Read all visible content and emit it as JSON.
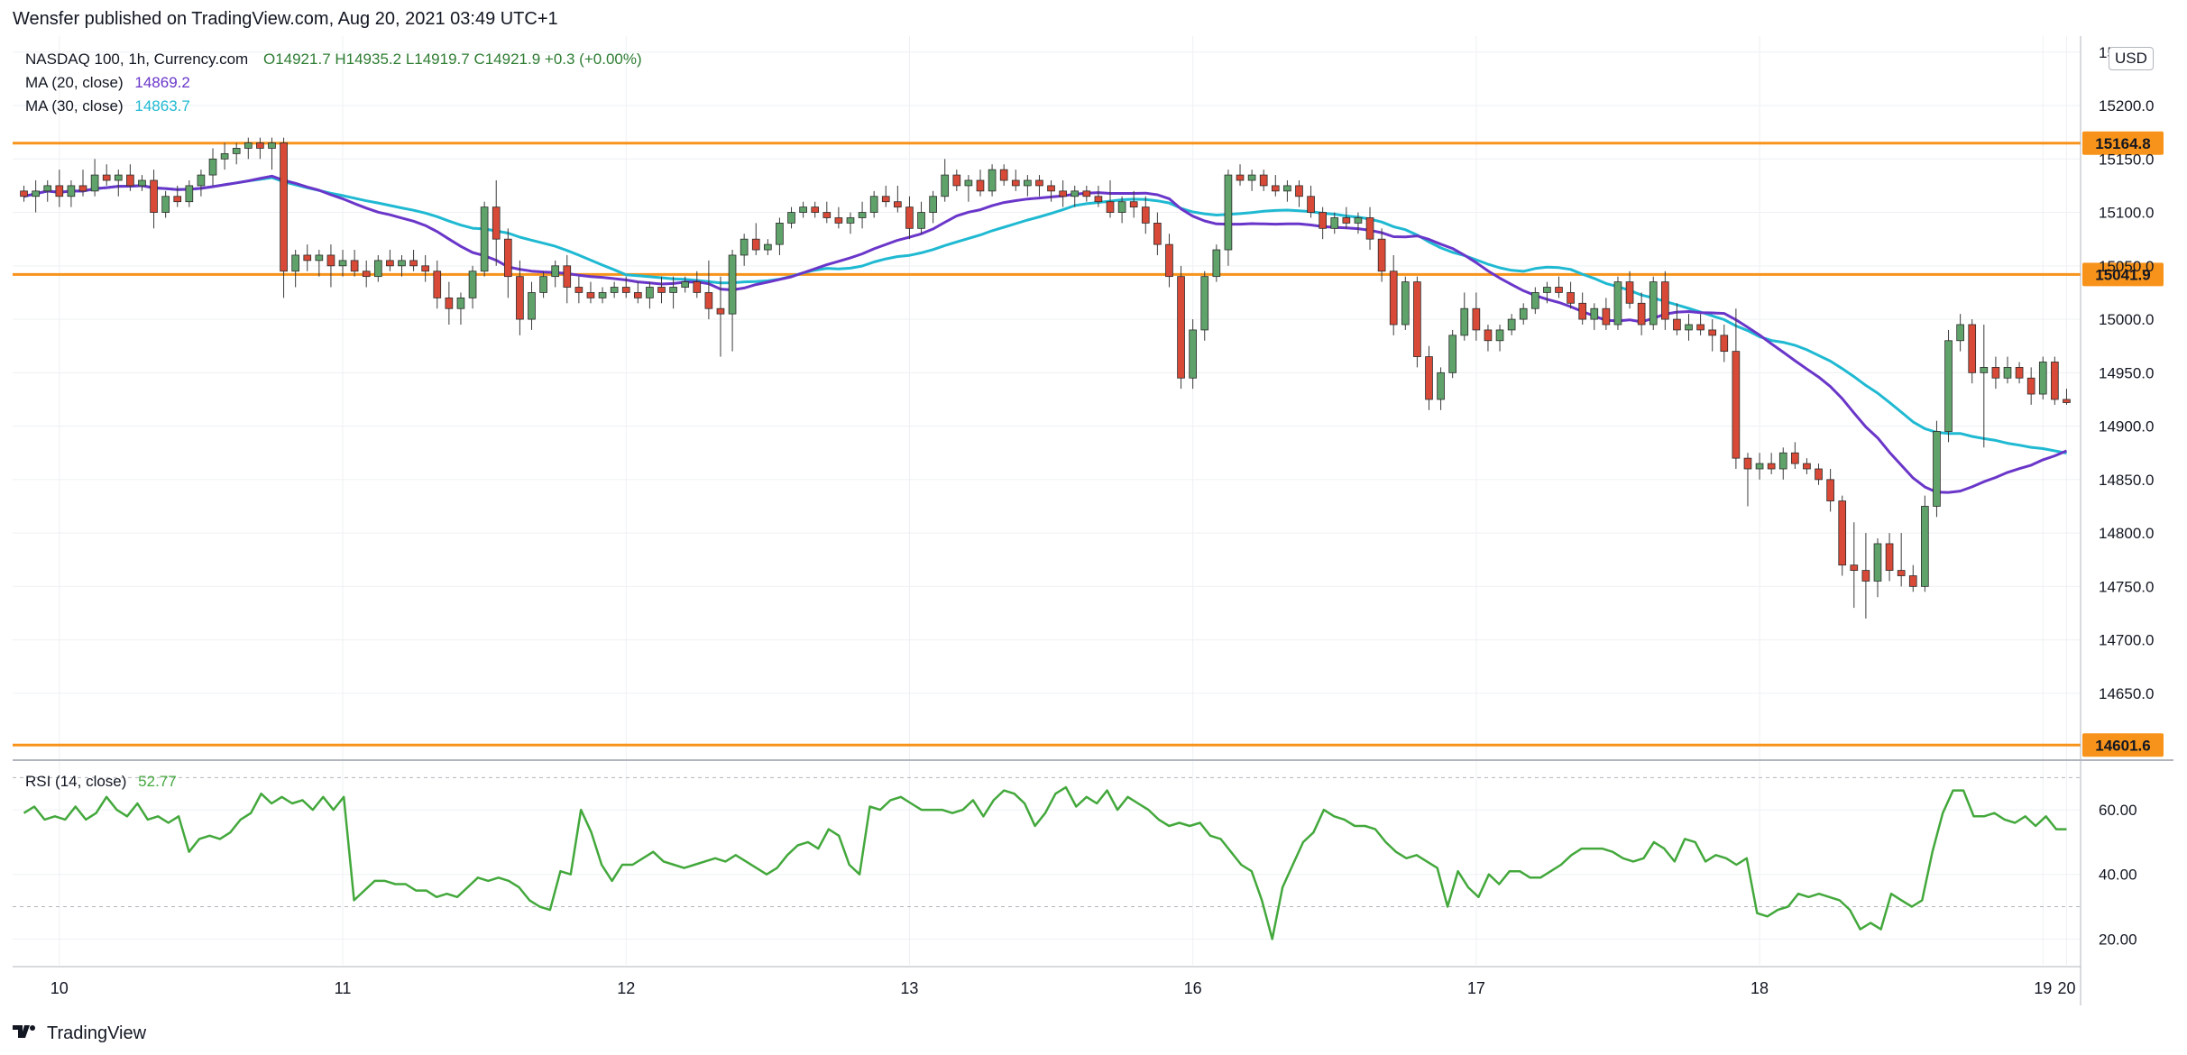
{
  "caption": "Wensfer published on TradingView.com, Aug 20, 2021 03:49 UTC+1",
  "footer": {
    "brand": "TradingView",
    "logo": "tradingview-logo-icon"
  },
  "currency_button": "USD",
  "legend": {
    "symbol": "NASDAQ 100, 1h, Currency.com",
    "ohlc": "O14921.7  H14935.2  L14919.7  C14921.9  +0.3 (+0.00%)",
    "ma20_label": "MA (20, close)",
    "ma20_value": "14869.2",
    "ma30_label": "MA (30, close)",
    "ma30_value": "14863.7",
    "rsi_label": "RSI (14, close)",
    "rsi_value": "52.77"
  },
  "colors": {
    "up": "#5fa36b",
    "down": "#d84a37",
    "ma20": "#6a36c9",
    "ma30": "#1fb9d2",
    "levels": "#f7931a",
    "rsi": "#43a83c",
    "grid": "#eef0f3"
  },
  "chart_data": [
    {
      "type": "candlestick",
      "title": "NASDAQ 100, 1h, Currency.com",
      "x_tick_labels": [
        "10",
        "11",
        "12",
        "13",
        "16",
        "17",
        "18",
        "19",
        "20"
      ],
      "y_tick_labels": [
        "14650.0",
        "14700.0",
        "14750.0",
        "14800.0",
        "14850.0",
        "14900.0",
        "14950.0",
        "15000.0",
        "15050.0",
        "15100.0",
        "15150.0",
        "15200.0",
        "15250.0"
      ],
      "ylim": [
        14590,
        15265
      ],
      "horizontal_levels": [
        15164.8,
        15041.9,
        14601.6
      ],
      "candles": [
        [
          15120,
          15125,
          15110,
          15115
        ],
        [
          15115,
          15130,
          15100,
          15120
        ],
        [
          15120,
          15130,
          15110,
          15125
        ],
        [
          15125,
          15140,
          15105,
          15115
        ],
        [
          15115,
          15130,
          15105,
          15125
        ],
        [
          15125,
          15140,
          15115,
          15120
        ],
        [
          15120,
          15150,
          15115,
          15135
        ],
        [
          15135,
          15145,
          15125,
          15130
        ],
        [
          15130,
          15140,
          15115,
          15135
        ],
        [
          15135,
          15145,
          15120,
          15125
        ],
        [
          15125,
          15135,
          15120,
          15130
        ],
        [
          15130,
          15140,
          15085,
          15100
        ],
        [
          15100,
          15120,
          15095,
          15115
        ],
        [
          15115,
          15125,
          15105,
          15110
        ],
        [
          15110,
          15130,
          15105,
          15125
        ],
        [
          15125,
          15140,
          15115,
          15135
        ],
        [
          15135,
          15160,
          15125,
          15150
        ],
        [
          15150,
          15165,
          15140,
          15155
        ],
        [
          15155,
          15165,
          15145,
          15160
        ],
        [
          15160,
          15170,
          15150,
          15165
        ],
        [
          15165,
          15170,
          15150,
          15160
        ],
        [
          15160,
          15170,
          15140,
          15165
        ],
        [
          15165,
          15170,
          15020,
          15045
        ],
        [
          15045,
          15065,
          15030,
          15060
        ],
        [
          15060,
          15070,
          15045,
          15055
        ],
        [
          15055,
          15065,
          15040,
          15060
        ],
        [
          15060,
          15070,
          15030,
          15050
        ],
        [
          15050,
          15065,
          15040,
          15055
        ],
        [
          15055,
          15065,
          15040,
          15045
        ],
        [
          15045,
          15055,
          15030,
          15040
        ],
        [
          15040,
          15060,
          15035,
          15055
        ],
        [
          15055,
          15065,
          15045,
          15050
        ],
        [
          15050,
          15060,
          15040,
          15055
        ],
        [
          15055,
          15065,
          15045,
          15050
        ],
        [
          15050,
          15060,
          15035,
          15045
        ],
        [
          15045,
          15055,
          15010,
          15020
        ],
        [
          15020,
          15035,
          14995,
          15010
        ],
        [
          15010,
          15025,
          14995,
          15020
        ],
        [
          15020,
          15050,
          15010,
          15045
        ],
        [
          15045,
          15110,
          15040,
          15105
        ],
        [
          15105,
          15130,
          15050,
          15075
        ],
        [
          15075,
          15085,
          15020,
          15040
        ],
        [
          15040,
          15055,
          14985,
          15000
        ],
        [
          15000,
          15035,
          14990,
          15025
        ],
        [
          15025,
          15045,
          15020,
          15040
        ],
        [
          15040,
          15055,
          15030,
          15050
        ],
        [
          15050,
          15060,
          15015,
          15030
        ],
        [
          15030,
          15040,
          15015,
          15025
        ],
        [
          15025,
          15035,
          15015,
          15020
        ],
        [
          15020,
          15030,
          15015,
          15025
        ],
        [
          15025,
          15035,
          15020,
          15030
        ],
        [
          15030,
          15040,
          15020,
          15025
        ],
        [
          15025,
          15035,
          15015,
          15020
        ],
        [
          15020,
          15035,
          15010,
          15030
        ],
        [
          15030,
          15040,
          15015,
          15025
        ],
        [
          15025,
          15040,
          15010,
          15030
        ],
        [
          15030,
          15040,
          15025,
          15035
        ],
        [
          15035,
          15045,
          15020,
          15025
        ],
        [
          15025,
          15055,
          15000,
          15010
        ],
        [
          15010,
          15040,
          14965,
          15005
        ],
        [
          15005,
          15065,
          14970,
          15060
        ],
        [
          15060,
          15080,
          15050,
          15075
        ],
        [
          15075,
          15090,
          15060,
          15065
        ],
        [
          15065,
          15075,
          15060,
          15070
        ],
        [
          15070,
          15095,
          15060,
          15090
        ],
        [
          15090,
          15105,
          15085,
          15100
        ],
        [
          15100,
          15110,
          15095,
          15105
        ],
        [
          15105,
          15110,
          15095,
          15100
        ],
        [
          15100,
          15110,
          15090,
          15095
        ],
        [
          15095,
          15105,
          15085,
          15090
        ],
        [
          15090,
          15100,
          15080,
          15095
        ],
        [
          15095,
          15110,
          15085,
          15100
        ],
        [
          15100,
          15120,
          15095,
          15115
        ],
        [
          15115,
          15125,
          15105,
          15110
        ],
        [
          15110,
          15125,
          15100,
          15105
        ],
        [
          15105,
          15115,
          15075,
          15085
        ],
        [
          15085,
          15110,
          15080,
          15100
        ],
        [
          15100,
          15120,
          15090,
          15115
        ],
        [
          15115,
          15150,
          15110,
          15135
        ],
        [
          15135,
          15140,
          15120,
          15125
        ],
        [
          15125,
          15135,
          15110,
          15130
        ],
        [
          15130,
          15140,
          15115,
          15120
        ],
        [
          15120,
          15145,
          15115,
          15140
        ],
        [
          15140,
          15145,
          15125,
          15130
        ],
        [
          15130,
          15140,
          15120,
          15125
        ],
        [
          15125,
          15135,
          15115,
          15130
        ],
        [
          15130,
          15135,
          15115,
          15125
        ],
        [
          15125,
          15130,
          15110,
          15120
        ],
        [
          15120,
          15130,
          15105,
          15115
        ],
        [
          15115,
          15125,
          15105,
          15120
        ],
        [
          15120,
          15125,
          15110,
          15115
        ],
        [
          15115,
          15125,
          15105,
          15110
        ],
        [
          15110,
          15130,
          15095,
          15100
        ],
        [
          15100,
          15115,
          15090,
          15110
        ],
        [
          15110,
          15120,
          15095,
          15105
        ],
        [
          15105,
          15115,
          15080,
          15090
        ],
        [
          15090,
          15100,
          15060,
          15070
        ],
        [
          15070,
          15080,
          15030,
          15040
        ],
        [
          15040,
          15050,
          14935,
          14945
        ],
        [
          14945,
          15000,
          14935,
          14990
        ],
        [
          14990,
          15045,
          14980,
          15040
        ],
        [
          15040,
          15070,
          15035,
          15065
        ],
        [
          15065,
          15140,
          15050,
          15135
        ],
        [
          15135,
          15145,
          15125,
          15130
        ],
        [
          15130,
          15140,
          15120,
          15135
        ],
        [
          15135,
          15140,
          15120,
          15125
        ],
        [
          15125,
          15135,
          15115,
          15120
        ],
        [
          15120,
          15130,
          15110,
          15125
        ],
        [
          15125,
          15130,
          15105,
          15115
        ],
        [
          15115,
          15125,
          15095,
          15100
        ],
        [
          15100,
          15105,
          15075,
          15085
        ],
        [
          15085,
          15100,
          15080,
          15095
        ],
        [
          15095,
          15105,
          15085,
          15090
        ],
        [
          15090,
          15100,
          15080,
          15095
        ],
        [
          15095,
          15105,
          15065,
          15075
        ],
        [
          15075,
          15085,
          15035,
          15045
        ],
        [
          15045,
          15060,
          14985,
          14995
        ],
        [
          14995,
          15040,
          14990,
          15035
        ],
        [
          15035,
          15040,
          14955,
          14965
        ],
        [
          14965,
          14975,
          14915,
          14925
        ],
        [
          14925,
          14955,
          14915,
          14950
        ],
        [
          14950,
          14990,
          14945,
          14985
        ],
        [
          14985,
          15025,
          14980,
          15010
        ],
        [
          15010,
          15025,
          14980,
          14990
        ],
        [
          14990,
          14995,
          14970,
          14980
        ],
        [
          14980,
          14995,
          14970,
          14990
        ],
        [
          14990,
          15005,
          14985,
          15000
        ],
        [
          15000,
          15015,
          14995,
          15010
        ],
        [
          15010,
          15030,
          15005,
          15025
        ],
        [
          15025,
          15035,
          15015,
          15030
        ],
        [
          15030,
          15040,
          15020,
          15025
        ],
        [
          15025,
          15035,
          15010,
          15015
        ],
        [
          15015,
          15025,
          14995,
          15000
        ],
        [
          15000,
          15015,
          14990,
          15010
        ],
        [
          15010,
          15020,
          14990,
          14995
        ],
        [
          14995,
          15040,
          14990,
          15035
        ],
        [
          15035,
          15045,
          15010,
          15015
        ],
        [
          15015,
          15025,
          14985,
          14995
        ],
        [
          14995,
          15040,
          14990,
          15035
        ],
        [
          15035,
          15045,
          14990,
          15000
        ],
        [
          15000,
          15015,
          14985,
          14990
        ],
        [
          14990,
          15005,
          14980,
          14995
        ],
        [
          14995,
          15005,
          14985,
          14990
        ],
        [
          14990,
          15000,
          14970,
          14985
        ],
        [
          14985,
          14995,
          14960,
          14970
        ],
        [
          14970,
          15010,
          14860,
          14870
        ],
        [
          14870,
          14875,
          14825,
          14860
        ],
        [
          14860,
          14875,
          14850,
          14865
        ],
        [
          14865,
          14875,
          14855,
          14860
        ],
        [
          14860,
          14880,
          14850,
          14875
        ],
        [
          14875,
          14885,
          14860,
          14865
        ],
        [
          14865,
          14870,
          14855,
          14860
        ],
        [
          14860,
          14865,
          14845,
          14850
        ],
        [
          14850,
          14860,
          14820,
          14830
        ],
        [
          14830,
          14835,
          14760,
          14770
        ],
        [
          14770,
          14810,
          14730,
          14765
        ],
        [
          14765,
          14800,
          14720,
          14755
        ],
        [
          14755,
          14795,
          14740,
          14790
        ],
        [
          14790,
          14800,
          14755,
          14765
        ],
        [
          14765,
          14800,
          14750,
          14760
        ],
        [
          14760,
          14770,
          14745,
          14750
        ],
        [
          14750,
          14835,
          14745,
          14825
        ],
        [
          14825,
          14905,
          14815,
          14895
        ],
        [
          14895,
          14990,
          14885,
          14980
        ],
        [
          14980,
          15005,
          14970,
          14995
        ],
        [
          14995,
          15000,
          14940,
          14950
        ],
        [
          14950,
          14995,
          14880,
          14955
        ],
        [
          14955,
          14965,
          14935,
          14945
        ],
        [
          14945,
          14965,
          14940,
          14955
        ],
        [
          14955,
          14960,
          14940,
          14945
        ],
        [
          14945,
          14955,
          14920,
          14930
        ],
        [
          14930,
          14965,
          14925,
          14960
        ],
        [
          14960,
          14965,
          14920,
          14925
        ],
        [
          14925,
          14935,
          14920,
          14922
        ]
      ]
    },
    {
      "type": "line",
      "title": "RSI (14, close)",
      "y_tick_labels": [
        "20.00",
        "40.00",
        "60.00"
      ],
      "ylim": [
        12,
        74
      ],
      "bands": [
        30,
        70
      ],
      "values": [
        59,
        61,
        57,
        58,
        57,
        61,
        57,
        59,
        64,
        60,
        58,
        62,
        57,
        58,
        56,
        58,
        47,
        51,
        52,
        51,
        53,
        57,
        59,
        65,
        62,
        64,
        62,
        63,
        60,
        64,
        60,
        64,
        32,
        35,
        38,
        38,
        37,
        37,
        35,
        35,
        33,
        34,
        33,
        36,
        39,
        38,
        39,
        38,
        36,
        32,
        30,
        29,
        41,
        40,
        60,
        53,
        43,
        38,
        43,
        43,
        45,
        47,
        44,
        43,
        42,
        43,
        44,
        45,
        44,
        46,
        44,
        42,
        40,
        42,
        46,
        49,
        50,
        48,
        54,
        52,
        43,
        40,
        61,
        60,
        63,
        64,
        62,
        60,
        60,
        60,
        59,
        60,
        63,
        58,
        63,
        66,
        65,
        62,
        55,
        59,
        65,
        67,
        61,
        64,
        62,
        66,
        60,
        64,
        62,
        60,
        57,
        55,
        56,
        55,
        56,
        52,
        51,
        47,
        43,
        41,
        32,
        20,
        36,
        43,
        50,
        53,
        60,
        58,
        57,
        55,
        55,
        54,
        50,
        47,
        45,
        46,
        44,
        42,
        30,
        41,
        36,
        33,
        40,
        37,
        41,
        41,
        39,
        39,
        41,
        43,
        46,
        48,
        48,
        48,
        47,
        45,
        44,
        45,
        50,
        48,
        44,
        51,
        50,
        44,
        46,
        45,
        43,
        45,
        28,
        27,
        29,
        30,
        34,
        33,
        34,
        33,
        32,
        29,
        23,
        25,
        23,
        34,
        32,
        30,
        32,
        47,
        59,
        66,
        66,
        58,
        58,
        59,
        57,
        56,
        58,
        55,
        58,
        54,
        54
      ],
      "values_note": ""
    }
  ]
}
